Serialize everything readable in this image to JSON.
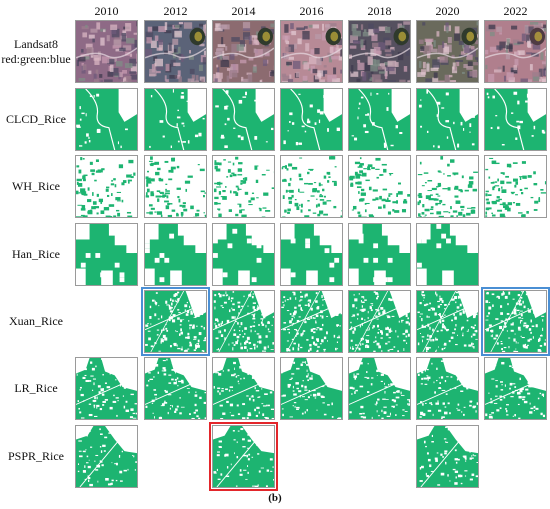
{
  "years": [
    "2010",
    "2012",
    "2014",
    "2016",
    "2018",
    "2020",
    "2022"
  ],
  "rows": [
    {
      "key": "landsat",
      "label_line1": "Landsat8",
      "label_line2": "red:green:blue",
      "kind": "rgb",
      "available": [
        true,
        true,
        true,
        true,
        true,
        true,
        true
      ]
    },
    {
      "key": "clcd",
      "label_line1": "CLCD_Rice",
      "label_line2": "",
      "kind": "clcd",
      "available": [
        true,
        true,
        true,
        true,
        true,
        true,
        true
      ]
    },
    {
      "key": "wh",
      "label_line1": "WH_Rice",
      "label_line2": "",
      "kind": "wh",
      "available": [
        true,
        true,
        true,
        true,
        true,
        true,
        true
      ]
    },
    {
      "key": "han",
      "label_line1": "Han_Rice",
      "label_line2": "",
      "kind": "han",
      "available": [
        true,
        true,
        true,
        true,
        true,
        true,
        false
      ]
    },
    {
      "key": "xuan",
      "label_line1": "Xuan_Rice",
      "label_line2": "",
      "kind": "xuan",
      "available": [
        false,
        true,
        true,
        true,
        true,
        true,
        true
      ]
    },
    {
      "key": "lr",
      "label_line1": "LR_Rice",
      "label_line2": "",
      "kind": "lr",
      "available": [
        true,
        true,
        true,
        true,
        true,
        true,
        true
      ]
    },
    {
      "key": "pspr",
      "label_line1": "PSPR_Rice",
      "label_line2": "",
      "kind": "pspr",
      "available": [
        true,
        false,
        true,
        false,
        false,
        true,
        false
      ]
    }
  ],
  "highlights": [
    {
      "row": 4,
      "col": 1,
      "color": "blue"
    },
    {
      "row": 4,
      "col": 6,
      "color": "blue"
    },
    {
      "row": 6,
      "col": 2,
      "color": "red"
    }
  ],
  "colors": {
    "rice": "#1db471",
    "highlight_blue": "#4a8fd4",
    "highlight_red": "#e3262b"
  },
  "caption": "(b)"
}
